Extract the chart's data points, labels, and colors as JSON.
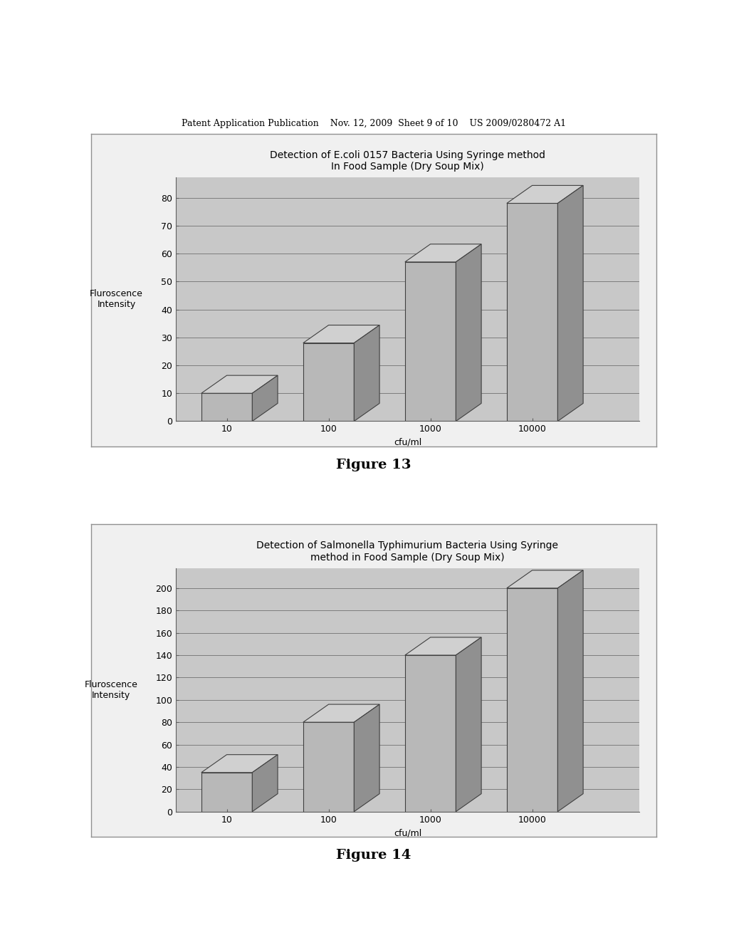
{
  "page_header": "Patent Application Publication    Nov. 12, 2009  Sheet 9 of 10    US 2009/0280472 A1",
  "fig13": {
    "title": "Detection of E.coli 0157 Bacteria Using Syringe method\nIn Food Sample (Dry Soup Mix)",
    "ylabel": "Fluroscence\nIntensity",
    "xlabel": "cfu/ml",
    "categories": [
      "10",
      "100",
      "1000",
      "10000"
    ],
    "values": [
      10,
      28,
      57,
      78
    ],
    "ylim": [
      0,
      80
    ],
    "yticks": [
      0,
      10,
      20,
      30,
      40,
      50,
      60,
      70,
      80
    ],
    "figure_label": "Figure 13"
  },
  "fig14": {
    "title": "Detection of Salmonella Typhimurium Bacteria Using Syringe\nmethod in Food Sample (Dry Soup Mix)",
    "ylabel": "Fluroscence\nIntensity",
    "xlabel": "cfu/ml",
    "categories": [
      "10",
      "100",
      "1000",
      "10000"
    ],
    "values": [
      35,
      80,
      140,
      200
    ],
    "ylim": [
      0,
      200
    ],
    "yticks": [
      0,
      20,
      40,
      60,
      80,
      100,
      120,
      140,
      160,
      180,
      200
    ],
    "figure_label": "Figure 14"
  },
  "bar_color_face": "#b0b0b0",
  "bar_color_edge": "#404040",
  "bar_hatch": "///",
  "background_color": "#ffffff",
  "chart_bg": "#c8c8c8",
  "border_color": "#808080"
}
